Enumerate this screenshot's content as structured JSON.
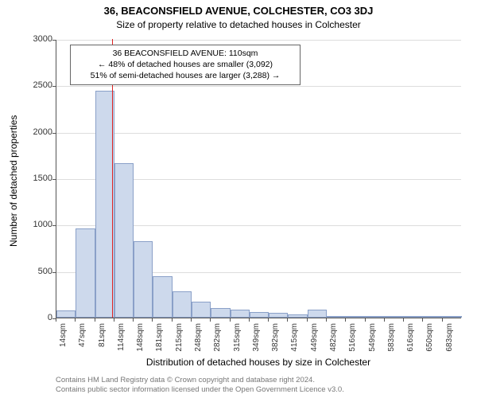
{
  "title_line1": "36, BEACONSFIELD AVENUE, COLCHESTER, CO3 3DJ",
  "title_line2": "Size of property relative to detached houses in Colchester",
  "ylabel": "Number of detached properties",
  "xlabel": "Distribution of detached houses by size in Colchester",
  "chart": {
    "type": "histogram",
    "ylim": [
      0,
      3000
    ],
    "ytick_step": 500,
    "yticks": [
      0,
      500,
      1000,
      1500,
      2000,
      2500,
      3000
    ],
    "bar_color": "#cdd9ec",
    "bar_border_color": "#8aa0c8",
    "grid_color": "#dddddd",
    "axis_color": "#555555",
    "background_color": "#ffffff",
    "marker_color": "#d22",
    "marker_x_sqm": 110,
    "x_start_sqm": 14,
    "x_step_sqm": 33.5,
    "bar_count": 21,
    "values": [
      80,
      960,
      2440,
      1660,
      820,
      450,
      280,
      170,
      100,
      85,
      60,
      50,
      35,
      85,
      15,
      10,
      8,
      6,
      4,
      3,
      2
    ],
    "xtick_labels": [
      "14sqm",
      "47sqm",
      "81sqm",
      "114sqm",
      "148sqm",
      "181sqm",
      "215sqm",
      "248sqm",
      "282sqm",
      "315sqm",
      "349sqm",
      "382sqm",
      "415sqm",
      "449sqm",
      "482sqm",
      "516sqm",
      "549sqm",
      "583sqm",
      "616sqm",
      "650sqm",
      "683sqm"
    ]
  },
  "annotation": {
    "line1": "36 BEACONSFIELD AVENUE: 110sqm",
    "line2": "← 48% of detached houses are smaller (3,092)",
    "line3": "51% of semi-detached houses are larger (3,288) →"
  },
  "footer": {
    "line1": "Contains HM Land Registry data © Crown copyright and database right 2024.",
    "line2": "Contains public sector information licensed under the Open Government Licence v3.0."
  }
}
